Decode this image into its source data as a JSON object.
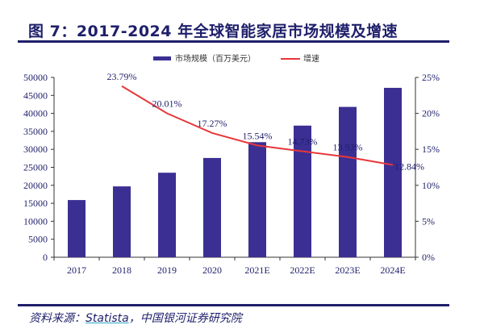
{
  "title": "图 7：2017-2024 年全球智能家居市场规模及增速",
  "source": {
    "prefix": "资料来源：",
    "link": "Statista",
    "suffix": "，中国银河证券研究院"
  },
  "chart_data": {
    "type": "bar+line",
    "categories": [
      "2017",
      "2018",
      "2019",
      "2020",
      "2021E",
      "2022E",
      "2023E",
      "2024E"
    ],
    "series": [
      {
        "name": "市场规模（百万美元）",
        "type": "bar",
        "axis": "left",
        "color": "#3b2f93",
        "values": [
          15900,
          19700,
          23500,
          27600,
          32000,
          36600,
          41800,
          47100
        ]
      },
      {
        "name": "增速",
        "type": "line",
        "axis": "right",
        "color": "#e8373a",
        "values": [
          null,
          23.79,
          20.01,
          17.27,
          15.54,
          14.73,
          13.93,
          12.84
        ],
        "labels": [
          "",
          "23.79%",
          "20.01%",
          "17.27%",
          "15.54%",
          "14.73%",
          "13.93%",
          "12.84%"
        ]
      }
    ],
    "y_left": {
      "range": [
        0,
        50000
      ],
      "ticks": [
        "0",
        "5000",
        "10000",
        "15000",
        "20000",
        "25000",
        "30000",
        "35000",
        "40000",
        "45000",
        "50000"
      ]
    },
    "y_right": {
      "range": [
        0,
        25
      ],
      "ticks": [
        "0%",
        "5%",
        "10%",
        "15%",
        "20%",
        "25%"
      ]
    },
    "legend": "top-center",
    "grid": false
  }
}
